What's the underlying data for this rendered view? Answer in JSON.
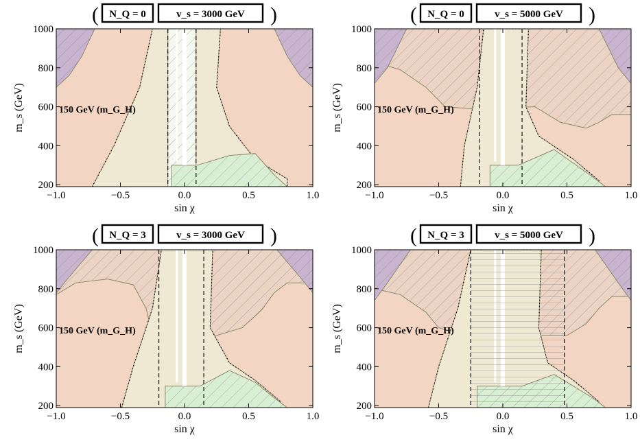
{
  "chart_data": [
    {
      "type": "area",
      "header": {
        "nq": "N_Q = 0",
        "vs": "v_s = 3000 GeV"
      },
      "mass_label": "150 GeV (m_G_H)",
      "xlabel": "sin χ",
      "ylabel": "m_s (GeV)",
      "xlim": [
        -1.0,
        1.0
      ],
      "ylim": [
        190,
        1000
      ],
      "xticks": [
        "−1.0",
        "−0.5",
        "0.0",
        "0.5",
        "1.0"
      ],
      "yticks": [
        "200",
        "400",
        "600",
        "800",
        "1000"
      ],
      "vertical_lines": [
        -0.13,
        0.09
      ],
      "regions": [
        {
          "id": "base-excluded",
          "color": "#f3d5c3",
          "polygon": [
            [
              -1,
              190
            ],
            [
              1,
              190
            ],
            [
              1,
              1000
            ],
            [
              -1,
              1000
            ]
          ]
        },
        {
          "id": "allowed-band",
          "color": "#efe8d2",
          "polygon": [
            [
              -0.72,
              190
            ],
            [
              -0.55,
              400
            ],
            [
              -0.35,
              700
            ],
            [
              -0.25,
              1000
            ],
            [
              0.28,
              1000
            ],
            [
              0.25,
              700
            ],
            [
              0.35,
              500
            ],
            [
              0.55,
              330
            ],
            [
              0.8,
              230
            ],
            [
              0.8,
              190
            ]
          ]
        },
        {
          "id": "light-band",
          "color": "#f5f8ee",
          "polygon": [
            [
              -0.13,
              190
            ],
            [
              -0.13,
              1000
            ],
            [
              0.09,
              1000
            ],
            [
              0.09,
              190
            ]
          ]
        },
        {
          "id": "green-hatch",
          "color": "#d9efd4",
          "polygon": [
            [
              -0.1,
              300
            ],
            [
              0.1,
              300
            ],
            [
              0.35,
              350
            ],
            [
              0.55,
              360
            ],
            [
              0.7,
              250
            ],
            [
              0.8,
              190
            ],
            [
              -0.1,
              190
            ]
          ]
        },
        {
          "id": "corner-left",
          "color": "#c9b4cf",
          "polygon": [
            [
              -1,
              1000
            ],
            [
              -1,
              700
            ],
            [
              -0.9,
              760
            ],
            [
              -0.8,
              860
            ],
            [
              -0.7,
              1000
            ]
          ]
        },
        {
          "id": "corner-right",
          "color": "#c9b4cf",
          "polygon": [
            [
              1,
              1000
            ],
            [
              1,
              700
            ],
            [
              0.9,
              760
            ],
            [
              0.8,
              860
            ],
            [
              0.7,
              1000
            ]
          ]
        }
      ]
    },
    {
      "type": "area",
      "header": {
        "nq": "N_Q = 0",
        "vs": "v_s = 5000 GeV"
      },
      "mass_label": "150 GeV (m_G_H)",
      "xlabel": "sin χ",
      "ylabel": "m_s (GeV)",
      "xlim": [
        -1.0,
        1.0
      ],
      "ylim": [
        190,
        1000
      ],
      "xticks": [
        "−1.0",
        "−0.5",
        "0.0",
        "0.5",
        "1.0"
      ],
      "yticks": [
        "200",
        "400",
        "600",
        "800",
        "1000"
      ],
      "vertical_lines": [
        -0.18,
        0.15
      ],
      "regions": [
        {
          "id": "base-excluded",
          "color": "#f3d5c3",
          "polygon": [
            [
              -1,
              190
            ],
            [
              1,
              190
            ],
            [
              1,
              1000
            ],
            [
              -1,
              1000
            ]
          ]
        },
        {
          "id": "upper-hatched",
          "color": "#ecd4c4",
          "polygon": [
            [
              -1,
              830
            ],
            [
              -0.8,
              790
            ],
            [
              -0.6,
              700
            ],
            [
              -0.45,
              600
            ],
            [
              -0.25,
              590
            ],
            [
              0.25,
              600
            ],
            [
              0.45,
              520
            ],
            [
              0.65,
              490
            ],
            [
              0.75,
              520
            ],
            [
              0.85,
              560
            ],
            [
              1,
              560
            ],
            [
              1,
              1000
            ],
            [
              -1,
              1000
            ]
          ]
        },
        {
          "id": "allowed-band",
          "color": "#efe8d2",
          "polygon": [
            [
              -0.33,
              190
            ],
            [
              -0.3,
              400
            ],
            [
              -0.2,
              700
            ],
            [
              -0.15,
              1000
            ],
            [
              0.2,
              1000
            ],
            [
              0.18,
              600
            ],
            [
              0.28,
              450
            ],
            [
              0.55,
              330
            ],
            [
              0.75,
              220
            ],
            [
              0.75,
              190
            ]
          ]
        },
        {
          "id": "green-hatch",
          "color": "#d9efd4",
          "polygon": [
            [
              -0.1,
              300
            ],
            [
              0.12,
              300
            ],
            [
              0.4,
              380
            ],
            [
              0.55,
              310
            ],
            [
              0.7,
              240
            ],
            [
              0.8,
              190
            ],
            [
              -0.1,
              190
            ]
          ]
        },
        {
          "id": "corner-left",
          "color": "#c9b4cf",
          "polygon": [
            [
              -1,
              1000
            ],
            [
              -1,
              720
            ],
            [
              -0.9,
              800
            ],
            [
              -0.75,
              1000
            ]
          ]
        },
        {
          "id": "corner-right",
          "color": "#c9b4cf",
          "polygon": [
            [
              1,
              1000
            ],
            [
              1,
              720
            ],
            [
              0.9,
              800
            ],
            [
              0.75,
              1000
            ]
          ]
        }
      ]
    },
    {
      "type": "area",
      "header": {
        "nq": "N_Q = 3",
        "vs": "v_s = 3000 GeV"
      },
      "mass_label": "150 GeV (m_G_H)",
      "xlabel": "sin χ",
      "ylabel": "m_s (GeV)",
      "xlim": [
        -1.0,
        1.0
      ],
      "ylim": [
        190,
        1000
      ],
      "xticks": [
        "−1.0",
        "−0.5",
        "0.0",
        "0.5",
        "1.0"
      ],
      "yticks": [
        "200",
        "400",
        "600",
        "800",
        "1000"
      ],
      "vertical_lines": [
        -0.2,
        0.15
      ],
      "regions": [
        {
          "id": "base-excluded",
          "color": "#f3d5c3",
          "polygon": [
            [
              -1,
              190
            ],
            [
              1,
              190
            ],
            [
              1,
              1000
            ],
            [
              -1,
              1000
            ]
          ]
        },
        {
          "id": "upper-hatched",
          "color": "#ecd4c4",
          "polygon": [
            [
              -1,
              770
            ],
            [
              -0.85,
              830
            ],
            [
              -0.6,
              850
            ],
            [
              -0.4,
              820
            ],
            [
              -0.3,
              700
            ],
            [
              -0.25,
              560
            ],
            [
              0.25,
              560
            ],
            [
              0.45,
              600
            ],
            [
              0.6,
              690
            ],
            [
              0.7,
              780
            ],
            [
              0.8,
              830
            ],
            [
              1,
              830
            ],
            [
              1,
              1000
            ],
            [
              -1,
              1000
            ]
          ]
        },
        {
          "id": "allowed-band",
          "color": "#efe8d2",
          "polygon": [
            [
              -0.49,
              190
            ],
            [
              -0.4,
              400
            ],
            [
              -0.25,
              700
            ],
            [
              -0.18,
              1000
            ],
            [
              0.22,
              1000
            ],
            [
              0.2,
              600
            ],
            [
              0.35,
              420
            ],
            [
              0.55,
              330
            ],
            [
              0.75,
              220
            ],
            [
              0.75,
              190
            ]
          ]
        },
        {
          "id": "green-hatch",
          "color": "#d9efd4",
          "polygon": [
            [
              -0.15,
              300
            ],
            [
              0.12,
              300
            ],
            [
              0.35,
              380
            ],
            [
              0.55,
              320
            ],
            [
              0.7,
              240
            ],
            [
              0.8,
              190
            ],
            [
              -0.15,
              190
            ]
          ]
        },
        {
          "id": "corner-left",
          "color": "#c9b4cf",
          "polygon": [
            [
              -1,
              1000
            ],
            [
              -1,
              780
            ],
            [
              -0.9,
              860
            ],
            [
              -0.72,
              1000
            ]
          ]
        },
        {
          "id": "corner-right",
          "color": "#c9b4cf",
          "polygon": [
            [
              1,
              1000
            ],
            [
              1,
              780
            ],
            [
              0.9,
              860
            ],
            [
              0.72,
              1000
            ]
          ]
        }
      ]
    },
    {
      "type": "area",
      "header": {
        "nq": "N_Q = 3",
        "vs": "v_s = 5000 GeV"
      },
      "mass_label": "150 GeV (m_G_H)",
      "xlabel": "sin χ",
      "ylabel": "m_s (GeV)",
      "xlim": [
        -1.0,
        1.0
      ],
      "ylim": [
        190,
        1000
      ],
      "xticks": [
        "−1.0",
        "−0.5",
        "0.0",
        "0.5",
        "1.0"
      ],
      "yticks": [
        "200",
        "400",
        "600",
        "800",
        "1000"
      ],
      "vertical_lines": [
        -0.25,
        0.48
      ],
      "regions": [
        {
          "id": "base-excluded",
          "color": "#f3d5c3",
          "polygon": [
            [
              -1,
              190
            ],
            [
              1,
              190
            ],
            [
              1,
              1000
            ],
            [
              -1,
              1000
            ]
          ]
        },
        {
          "id": "upper-hatched",
          "color": "#ecd4c4",
          "polygon": [
            [
              -1,
              800
            ],
            [
              -0.8,
              770
            ],
            [
              -0.6,
              680
            ],
            [
              -0.5,
              600
            ],
            [
              -0.3,
              560
            ],
            [
              0.3,
              560
            ],
            [
              0.5,
              560
            ],
            [
              0.65,
              620
            ],
            [
              0.75,
              700
            ],
            [
              0.85,
              760
            ],
            [
              1,
              760
            ],
            [
              1,
              1000
            ],
            [
              -1,
              1000
            ]
          ]
        },
        {
          "id": "allowed-band",
          "color": "#efe8d2",
          "polygon": [
            [
              -0.58,
              190
            ],
            [
              -0.5,
              400
            ],
            [
              -0.35,
              700
            ],
            [
              -0.25,
              1000
            ],
            [
              0.3,
              1000
            ],
            [
              0.28,
              600
            ],
            [
              0.35,
              420
            ],
            [
              0.55,
              330
            ],
            [
              0.75,
              220
            ],
            [
              0.75,
              190
            ]
          ]
        },
        {
          "id": "green-hatch",
          "color": "#d9efd4",
          "polygon": [
            [
              -0.2,
              300
            ],
            [
              0.15,
              300
            ],
            [
              0.4,
              360
            ],
            [
              0.55,
              300
            ],
            [
              0.7,
              240
            ],
            [
              0.8,
              190
            ],
            [
              -0.2,
              190
            ]
          ]
        },
        {
          "id": "corner-left",
          "color": "#c9b4cf",
          "polygon": [
            [
              -1,
              1000
            ],
            [
              -1,
              740
            ],
            [
              -0.9,
              830
            ],
            [
              -0.72,
              1000
            ]
          ]
        },
        {
          "id": "corner-right",
          "color": "#c9b4cf",
          "polygon": [
            [
              1,
              1000
            ],
            [
              1,
              740
            ],
            [
              0.9,
              830
            ],
            [
              0.72,
              1000
            ]
          ]
        }
      ]
    }
  ]
}
